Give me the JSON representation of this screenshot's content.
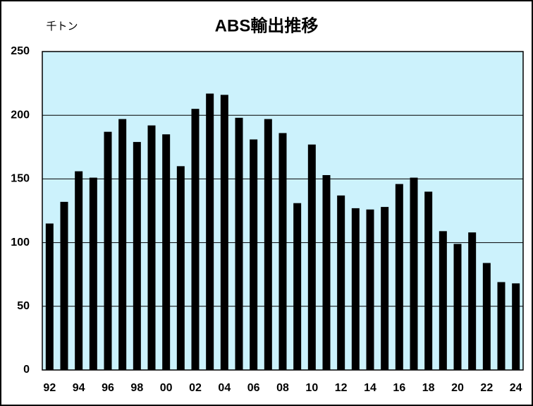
{
  "chart_data": {
    "type": "bar",
    "title": "ABS輸出推移",
    "unit_label": "千トン",
    "categories": [
      "92",
      null,
      "94",
      null,
      "96",
      null,
      "98",
      null,
      "00",
      null,
      "02",
      null,
      "04",
      null,
      "06",
      null,
      "08",
      null,
      "10",
      null,
      "12",
      null,
      "14",
      null,
      "16",
      null,
      "18",
      null,
      "20",
      null,
      "22",
      null,
      "24"
    ],
    "values": [
      115,
      132,
      156,
      151,
      187,
      197,
      179,
      192,
      185,
      160,
      205,
      217,
      216,
      198,
      181,
      197,
      186,
      131,
      177,
      153,
      137,
      127,
      126,
      128,
      146,
      151,
      140,
      109,
      99,
      108,
      84,
      69,
      68
    ],
    "color": "#000000",
    "ylim": [
      0,
      250
    ],
    "yticks": [
      0,
      50,
      100,
      150,
      200,
      250
    ],
    "grid": true
  }
}
